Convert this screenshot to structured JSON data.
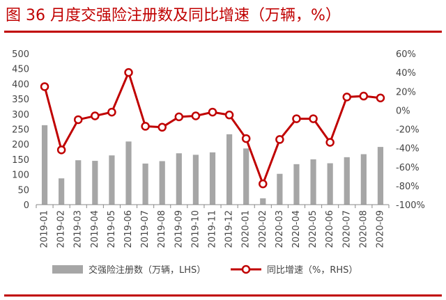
{
  "figure": {
    "title": "图 36 月度交强险注册数及同比增速（万辆，%）"
  },
  "colors": {
    "title": "#c00000",
    "rule": "#c00000",
    "bar": "#a6a6a6",
    "line": "#c00000",
    "marker_fill": "#ffffff",
    "axis": "#888888"
  },
  "chart_data": {
    "type": "bar",
    "title": "",
    "categories": [
      "2019-01",
      "2019-02",
      "2019-03",
      "2019-04",
      "2019-05",
      "2019-06",
      "2019-07",
      "2019-08",
      "2019-09",
      "2019-10",
      "2019-11",
      "2019-12",
      "2020-01",
      "2020-02",
      "2020-03",
      "2020-04",
      "2020-05",
      "2020-06",
      "2020-07",
      "2020-08",
      "2020-09"
    ],
    "series": [
      {
        "name": "交强险注册数（万辆，LHS）",
        "type": "bar",
        "axis": "left",
        "values": [
          263,
          87,
          147,
          145,
          163,
          209,
          136,
          144,
          170,
          165,
          173,
          233,
          186,
          21,
          102,
          134,
          150,
          137,
          157,
          167,
          191
        ]
      },
      {
        "name": "同比增速（%，RHS）",
        "type": "line",
        "axis": "right",
        "values": [
          25,
          -42,
          -10,
          -6,
          -2,
          40,
          -17,
          -18,
          -7,
          -6,
          -2,
          -5,
          -30,
          -78,
          -31,
          -9,
          -9,
          -34,
          14,
          15,
          13
        ]
      }
    ],
    "left_axis": {
      "ylim": [
        0,
        500
      ],
      "ticks": [
        0,
        50,
        100,
        150,
        200,
        250,
        300,
        350,
        400,
        450,
        500
      ]
    },
    "right_axis": {
      "ylim": [
        -100,
        60
      ],
      "ticks": [
        "-100%",
        "-80%",
        "-60%",
        "-40%",
        "-20%",
        "0%",
        "20%",
        "40%",
        "60%"
      ]
    },
    "grid": false,
    "legend_position": "bottom"
  }
}
